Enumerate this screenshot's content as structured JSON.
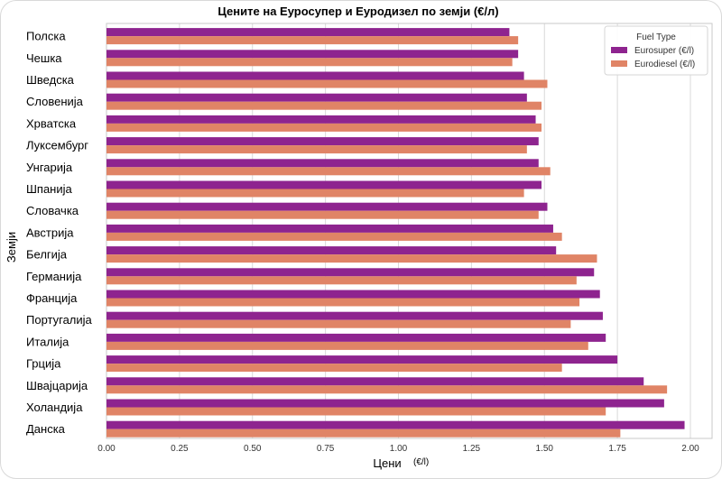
{
  "chart_data": {
    "type": "bar",
    "orientation": "horizontal",
    "title": "Цените на Еуросупер и Еуродизел по земји (€/л)",
    "xlabel": "Цени",
    "xlabel_suffix": "(€/l)",
    "ylabel": "Земји",
    "xlim": [
      0,
      2.07
    ],
    "xticks": [
      "0.00",
      "0.25",
      "0.50",
      "0.75",
      "1.00",
      "1.25",
      "1.50",
      "1.75",
      "2.00"
    ],
    "grid": "vertical",
    "legend": {
      "title": "Fuel Type",
      "placement": "top-right"
    },
    "categories": [
      "Полска",
      "Чешка",
      "Шведска",
      "Словенија",
      "Хрватска",
      "Луксембург",
      "Унгарија",
      "Шпанија",
      "Словачка",
      "Австрија",
      "Белгија",
      "Германија",
      "Франција",
      "Португалија",
      "Италија",
      "Грција",
      "Швајцарија",
      "Холандија",
      "Данска"
    ],
    "series": [
      {
        "name": "Eurosuper (€/l)",
        "color": "#8e248f",
        "values": [
          1.38,
          1.41,
          1.43,
          1.44,
          1.47,
          1.48,
          1.48,
          1.49,
          1.51,
          1.53,
          1.54,
          1.67,
          1.69,
          1.7,
          1.71,
          1.75,
          1.84,
          1.91,
          1.98
        ]
      },
      {
        "name": "Eurodiesel (€/l)",
        "color": "#e08466",
        "values": [
          1.41,
          1.39,
          1.51,
          1.49,
          1.49,
          1.44,
          1.52,
          1.43,
          1.48,
          1.56,
          1.68,
          1.61,
          1.62,
          1.59,
          1.65,
          1.56,
          1.92,
          1.71,
          1.76
        ]
      }
    ]
  }
}
